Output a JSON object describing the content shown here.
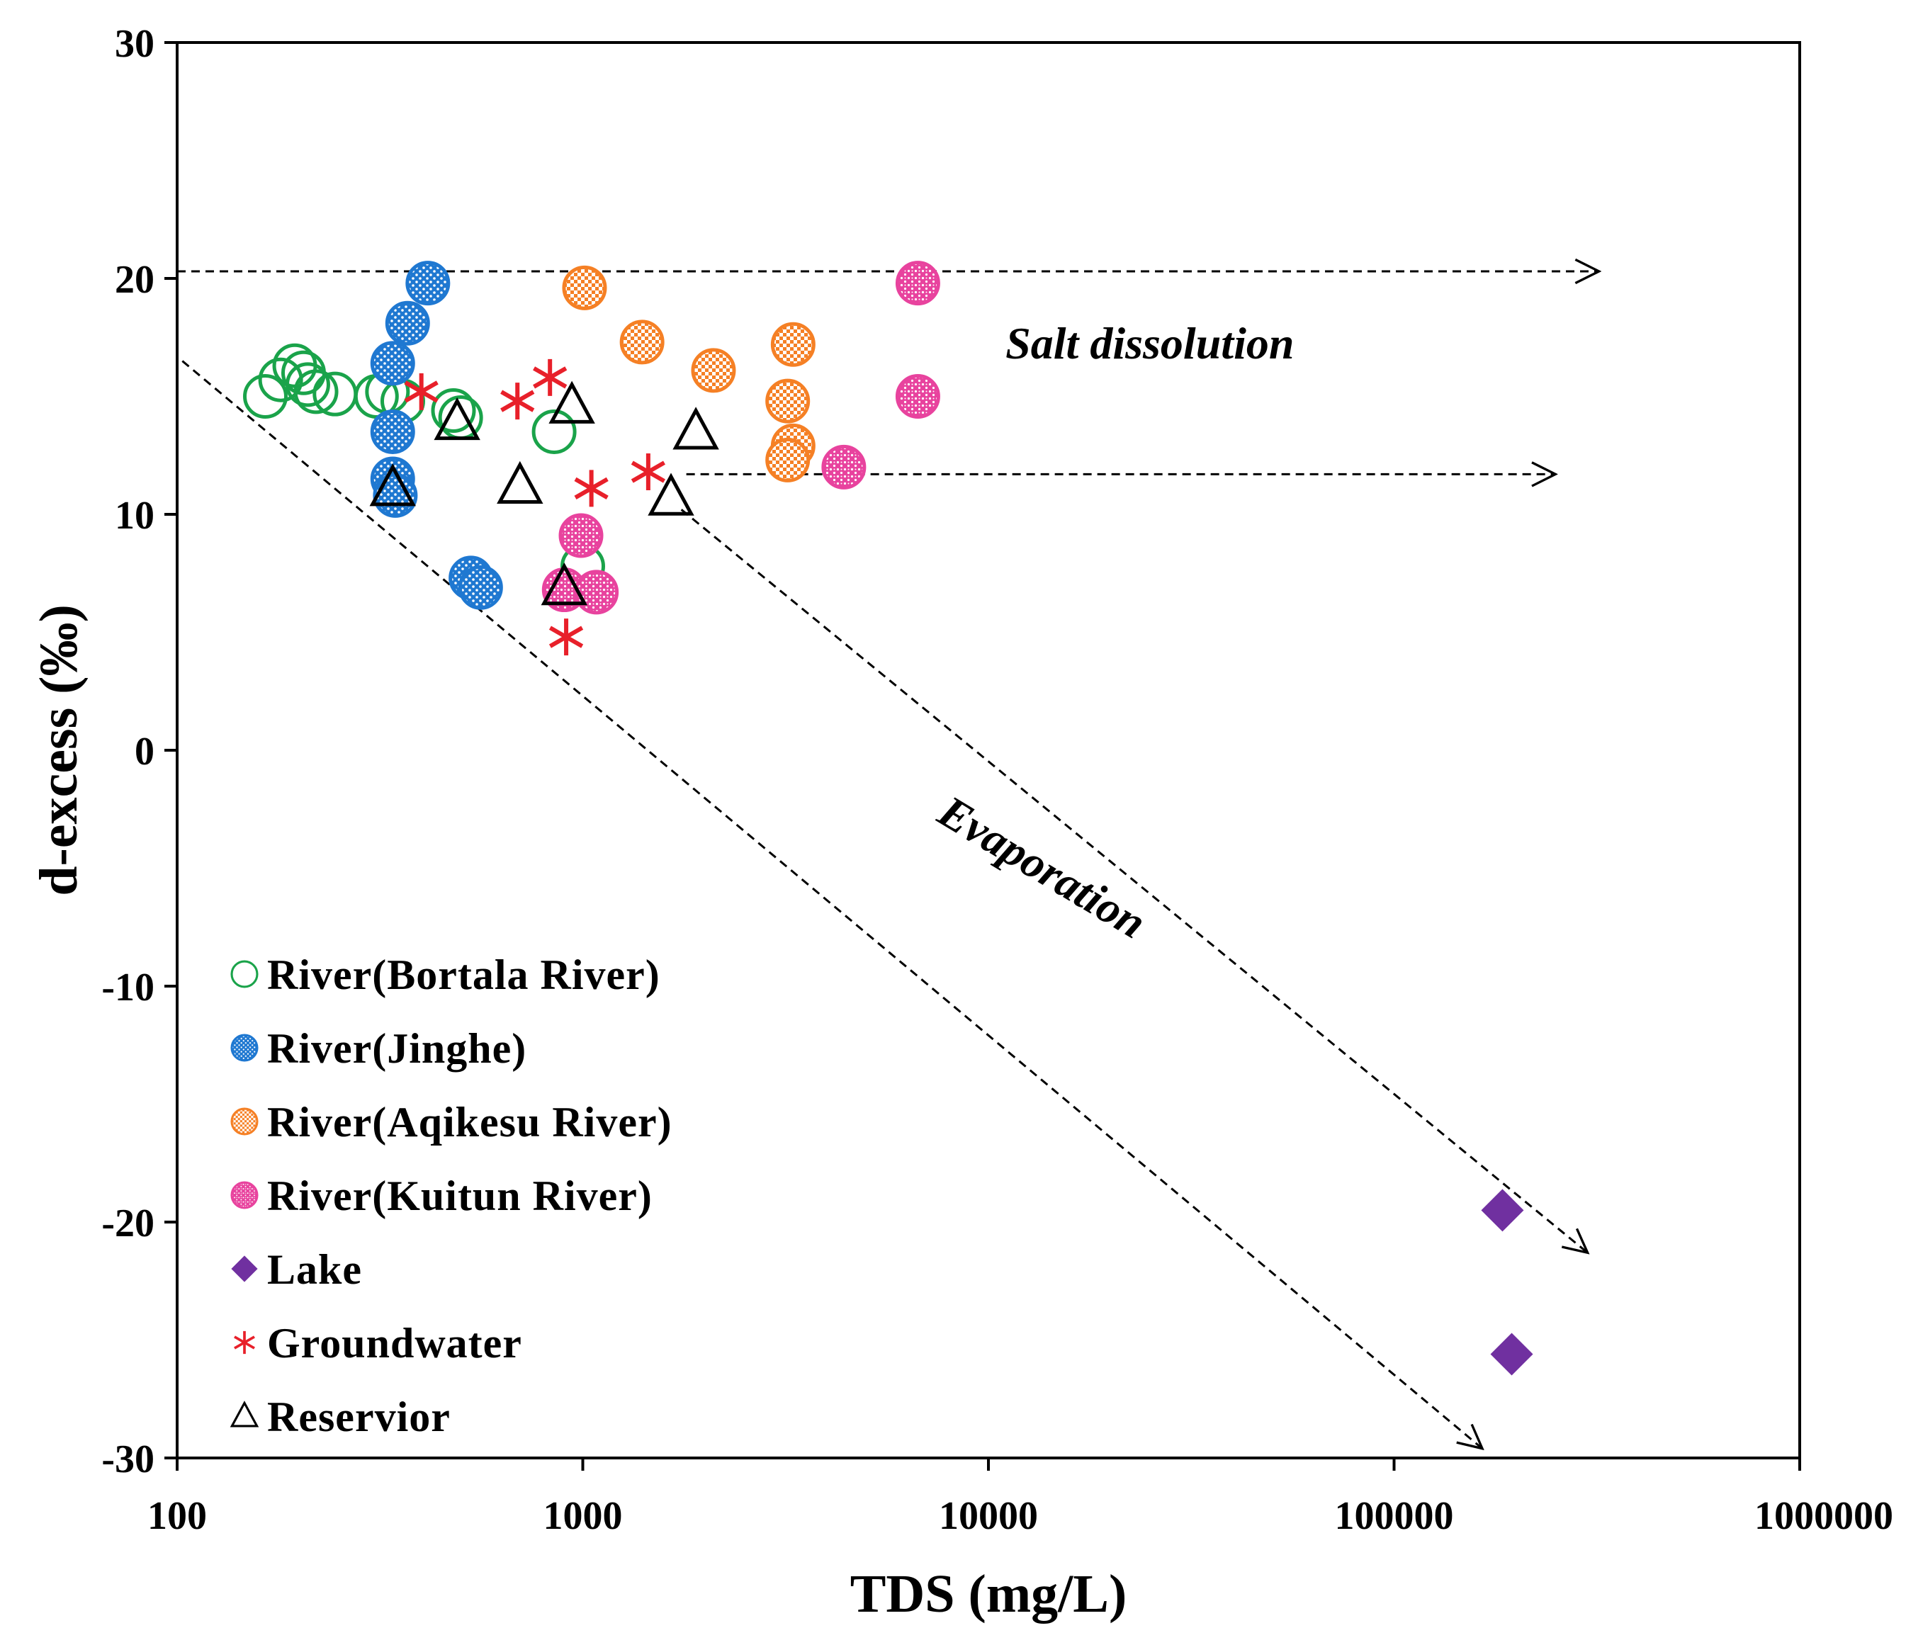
{
  "chart_data": {
    "type": "scatter",
    "title": "",
    "xlabel": "TDS (mg/L)",
    "ylabel": "d-excess (‰)",
    "x_scale": "log",
    "xlim": [
      100,
      1000000
    ],
    "ylim": [
      -30,
      30
    ],
    "x_ticks": [
      100,
      1000,
      10000,
      100000,
      1000000
    ],
    "x_tick_labels": [
      "100",
      "1000",
      "10000",
      "100000",
      "1000000"
    ],
    "y_ticks": [
      30,
      20,
      10,
      0,
      -10,
      -20,
      -30
    ],
    "y_tick_labels": [
      "30",
      "20",
      "10",
      "0",
      "-10",
      "-20",
      "-30"
    ],
    "legend_position": "bottom-left",
    "series": [
      {
        "name": "River(Bortala River)",
        "marker": "open-circle",
        "color": "#1aa34a",
        "points": [
          [
            165,
            15.0
          ],
          [
            180,
            15.7
          ],
          [
            195,
            16.3
          ],
          [
            205,
            16.0
          ],
          [
            210,
            15.5
          ],
          [
            220,
            15.2
          ],
          [
            245,
            15.1
          ],
          [
            310,
            15.0
          ],
          [
            330,
            15.2
          ],
          [
            360,
            14.8
          ],
          [
            480,
            14.4
          ],
          [
            500,
            14.1
          ],
          [
            850,
            13.5
          ],
          [
            1000,
            7.8
          ]
        ]
      },
      {
        "name": "River(Jinghe)",
        "marker": "filled-dotted-circle",
        "color": "#1f78d1",
        "points": [
          [
            415,
            19.8
          ],
          [
            370,
            18.1
          ],
          [
            340,
            16.4
          ],
          [
            340,
            13.5
          ],
          [
            340,
            11.5
          ],
          [
            345,
            10.8
          ],
          [
            530,
            7.3
          ],
          [
            560,
            6.9
          ]
        ]
      },
      {
        "name": "River(Aqikesu River)",
        "marker": "filled-checker-circle",
        "color": "#f58025",
        "points": [
          [
            1010,
            19.6
          ],
          [
            1400,
            17.3
          ],
          [
            2100,
            16.1
          ],
          [
            3300,
            17.2
          ],
          [
            3200,
            14.8
          ],
          [
            3300,
            12.9
          ],
          [
            3200,
            12.3
          ]
        ]
      },
      {
        "name": "River(Kuitun River)",
        "marker": "filled-speckled-circle",
        "color": "#e8439e",
        "points": [
          [
            6700,
            19.8
          ],
          [
            6700,
            15.0
          ],
          [
            4400,
            12.0
          ],
          [
            990,
            9.1
          ],
          [
            900,
            6.8
          ],
          [
            1080,
            6.7
          ]
        ]
      },
      {
        "name": "Lake",
        "marker": "diamond",
        "color": "#7030a0",
        "points": [
          [
            185000,
            -19.5
          ],
          [
            195000,
            -25.6
          ]
        ]
      },
      {
        "name": "Groundwater",
        "marker": "asterisk",
        "color": "#e8202a",
        "points": [
          [
            400,
            15.2
          ],
          [
            690,
            14.8
          ],
          [
            830,
            15.8
          ],
          [
            1050,
            11.1
          ],
          [
            1450,
            11.8
          ],
          [
            910,
            4.8
          ]
        ]
      },
      {
        "name": "Reservior",
        "marker": "open-triangle",
        "color": "#000000",
        "points": [
          [
            940,
            14.6
          ],
          [
            490,
            13.9
          ],
          [
            1900,
            13.5
          ],
          [
            700,
            11.2
          ],
          [
            340,
            11.1
          ],
          [
            1650,
            10.7
          ],
          [
            900,
            6.9
          ]
        ]
      }
    ],
    "arrows": [
      {
        "from": [
          100,
          20.3
        ],
        "to": [
          320000,
          20.3
        ]
      },
      {
        "from": [
          1800,
          11.7
        ],
        "to": [
          250000,
          11.7
        ]
      },
      {
        "from": [
          103,
          16.5
        ],
        "to": [
          165000,
          -29.6
        ]
      },
      {
        "from": [
          1750,
          10.2
        ],
        "to": [
          300000,
          -21.3
        ]
      }
    ],
    "annotations": [
      {
        "text": "Salt dissolution",
        "x": 25000,
        "y": 16.6
      },
      {
        "text": "Evaporation",
        "x": 13000,
        "y": -5.5,
        "angle": 31
      }
    ]
  }
}
